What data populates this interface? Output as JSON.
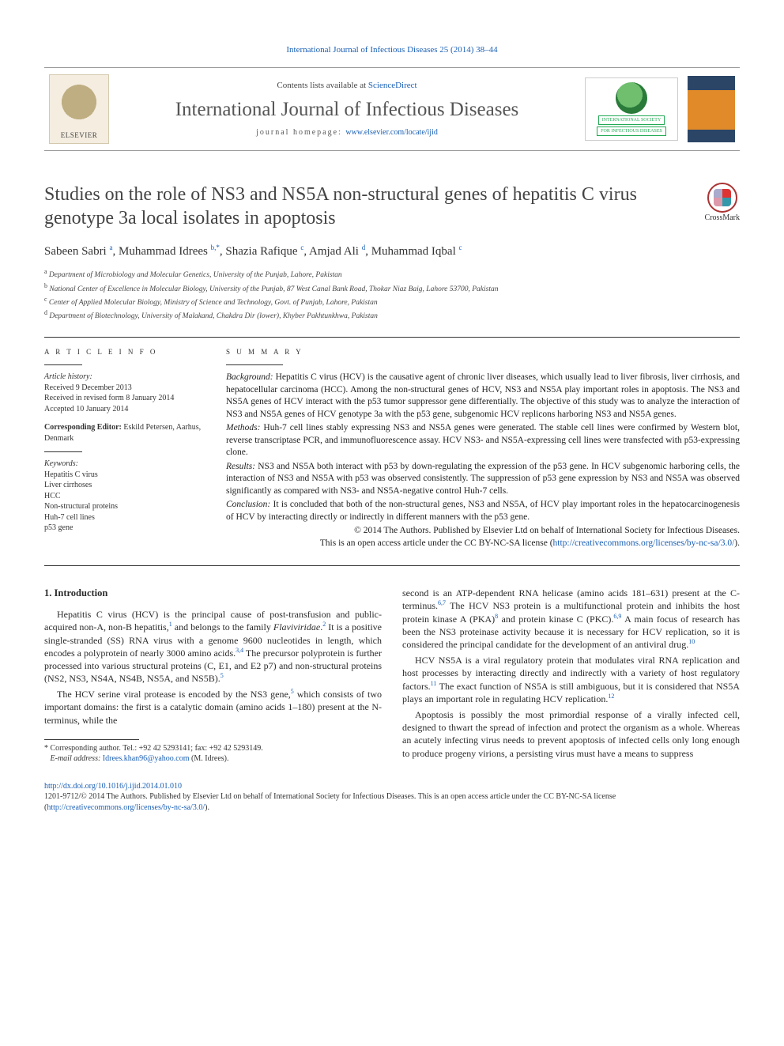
{
  "top_citation": "International Journal of Infectious Diseases 25 (2014) 38–44",
  "contents_available": "Contents lists available at ",
  "sciencedirect": "ScienceDirect",
  "journal_name": "International Journal of Infectious Diseases",
  "homepage_label": "journal homepage: ",
  "homepage_url": "www.elsevier.com/locate/ijid",
  "elsevier": "ELSEVIER",
  "society_top": "INTERNATIONAL SOCIETY",
  "society_bot": "FOR INFECTIOUS DISEASES",
  "crossmark": "CrossMark",
  "title": "Studies on the role of NS3 and NS5A non-structural genes of hepatitis C virus genotype 3a local isolates in apoptosis",
  "authors_html": "Sabeen Sabri <sup>a</sup>, Muhammad Idrees <sup>b,*</sup>, Shazia Rafique <sup>c</sup>, Amjad Ali <sup>d</sup>, Muhammad Iqbal <sup>c</sup>",
  "affils": {
    "a": "Department of Microbiology and Molecular Genetics, University of the Punjab, Lahore, Pakistan",
    "b": "National Center of Excellence in Molecular Biology, University of the Punjab, 87 West Canal Bank Road, Thokar Niaz Baig, Lahore 53700, Pakistan",
    "c": "Center of Applied Molecular Biology, Ministry of Science and Technology, Govt. of Punjab, Lahore, Pakistan",
    "d": "Department of Biotechnology, University of Malakand, Chakdra Dir (lower), Khyber Pakhtunkhwa, Pakistan"
  },
  "article_info_hdr": "A R T I C L E  I N F O",
  "summary_hdr": "S U M M A R Y",
  "history_label": "Article history:",
  "history": {
    "received": "Received 9 December 2013",
    "revised": "Received in revised form 8 January 2014",
    "accepted": "Accepted 10 January 2014"
  },
  "corr_editor_label": "Corresponding Editor:",
  "corr_editor": " Eskild Petersen, Aarhus, Denmark",
  "keywords_label": "Keywords:",
  "keywords": [
    "Hepatitis C virus",
    "Liver cirrhoses",
    "HCC",
    "Non-structural proteins",
    "Huh-7 cell lines",
    "p53 gene"
  ],
  "abstract": {
    "background_label": "Background:",
    "background": " Hepatitis C virus (HCV) is the causative agent of chronic liver diseases, which usually lead to liver fibrosis, liver cirrhosis, and hepatocellular carcinoma (HCC). Among the non-structural genes of HCV, NS3 and NS5A play important roles in apoptosis. The NS3 and NS5A genes of HCV interact with the p53 tumor suppressor gene differentially. The objective of this study was to analyze the interaction of NS3 and NS5A genes of HCV genotype 3a with the p53 gene, subgenomic HCV replicons harboring NS3 and NS5A genes.",
    "methods_label": "Methods:",
    "methods": " Huh-7 cell lines stably expressing NS3 and NS5A genes were generated. The stable cell lines were confirmed by Western blot, reverse transcriptase PCR, and immunofluorescence assay. HCV NS3- and NS5A-expressing cell lines were transfected with p53-expressing clone.",
    "results_label": "Results:",
    "results": " NS3 and NS5A both interact with p53 by down-regulating the expression of the p53 gene. In HCV subgenomic harboring cells, the interaction of NS3 and NS5A with p53 was observed consistently. The suppression of p53 gene expression by NS3 and NS5A was observed significantly as compared with NS3- and NS5A-negative control Huh-7 cells.",
    "conclusion_label": "Conclusion:",
    "conclusion": " It is concluded that both of the non-structural genes, NS3 and NS5A, of HCV play important roles in the hepatocarcinogenesis of HCV by interacting directly or indirectly in different manners with the p53 gene.",
    "copyright": "© 2014 The Authors. Published by Elsevier Ltd on behalf of International Society for Infectious Diseases.",
    "license_lead": "This is an open access article under the CC BY-NC-SA license (",
    "license_url": "http://creativecommons.org/licenses/by-nc-sa/3.0/",
    "license_tail": ")."
  },
  "intro_hdr": "1. Introduction",
  "intro": {
    "p1a": "Hepatitis C virus (HCV) is the principal cause of post-transfusion and public-acquired non-A, non-B hepatitis,",
    "r1": "1",
    "p1b": " and belongs to the family ",
    "p1i": "Flaviviridae",
    "p1c": ".",
    "r2": "2",
    "p1d": " It is a positive single-stranded (SS) RNA virus with a genome 9600 nucleotides in length, which encodes a polyprotein of nearly 3000 amino acids.",
    "r34": "3,4",
    "p1e": " The precursor polyprotein is further processed into various structural proteins (C, E1, and E2 p7) and non-structural proteins (NS2, NS3, NS4A, NS4B, NS5A, and NS5B).",
    "r5a": "5",
    "p2a": "The HCV serine viral protease is encoded by the NS3 gene,",
    "r5b": "5",
    "p2b": " which consists of two important domains: the first is a catalytic domain (amino acids 1–180) present at the N-terminus, while the",
    "p3a": "second is an ATP-dependent RNA helicase (amino acids 181–631) present at the C-terminus.",
    "r67": "6,7",
    "p3b": " The HCV NS3 protein is a multifunctional protein and inhibits the host protein kinase A (PKA)",
    "r8": "8",
    "p3c": " and protein kinase C (PKC).",
    "r69": "6,9",
    "p3d": " A main focus of research has been the NS3 proteinase activity because it is necessary for HCV replication, so it is considered the principal candidate for the development of an antiviral drug.",
    "r10": "10",
    "p4a": "HCV NS5A is a viral regulatory protein that modulates viral RNA replication and host processes by interacting directly and indirectly with a variety of host regulatory factors.",
    "r11": "11",
    "p4b": " The exact function of NS5A is still ambiguous, but it is considered that NS5A plays an important role in regulating HCV replication.",
    "r12": "12",
    "p5": "Apoptosis is possibly the most primordial response of a virally infected cell, designed to thwart the spread of infection and protect the organism as a whole. Whereas an acutely infecting virus needs to prevent apoptosis of infected cells only long enough to produce progeny virions, a persisting virus must have a means to suppress"
  },
  "footnote": {
    "star": "* Corresponding author. Tel.: +92 42 5293141; fax: +92 42 5293149.",
    "email_label": "E-mail address:",
    "email": "Idrees.khan96@yahoo.com",
    "email_tail": " (M. Idrees)."
  },
  "bottom": {
    "doi": "http://dx.doi.org/10.1016/j.ijid.2014.01.010",
    "issn_line": "1201-9712/© 2014 The Authors. Published by Elsevier Ltd on behalf of International Society for Infectious Diseases. This is an open access article under the CC BY-NC-SA license (",
    "license_url": "http://creativecommons.org/licenses/by-nc-sa/3.0/",
    "tail": ")."
  },
  "colors": {
    "link": "#1a5fb4",
    "text": "#2b2b2b",
    "rule": "#333333"
  }
}
